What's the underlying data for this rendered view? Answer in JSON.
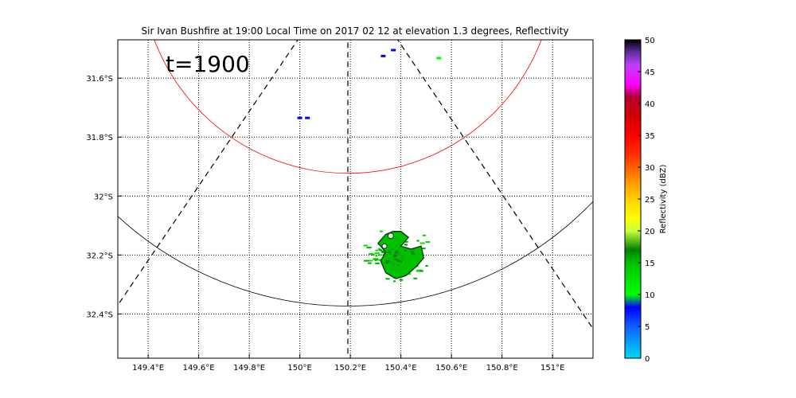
{
  "chart_data": {
    "type": "heatmap",
    "title": "Sir Ivan Bushfire at 19:00 Local Time on 2017 02 12 at elevation 1.3 degrees, Reflectivity",
    "annotation": "t=1900",
    "xlim": [
      149.28,
      151.16
    ],
    "ylim": [
      -32.55,
      -31.47
    ],
    "x_ticks": [
      149.4,
      149.6,
      149.8,
      150.0,
      150.2,
      150.4,
      150.6,
      150.8,
      151.0
    ],
    "x_tick_labels": [
      "149.4°E",
      "149.6°E",
      "149.8°E",
      "150°E",
      "150.2°E",
      "150.4°E",
      "150.6°E",
      "150.8°E",
      "151°E"
    ],
    "y_ticks": [
      -31.6,
      -31.8,
      -32.0,
      -32.2,
      -32.4
    ],
    "y_tick_labels": [
      "31.6°S",
      "31.8°S",
      "32°S",
      "32.2°S",
      "32.4°S"
    ],
    "grid": true,
    "grid_style": "dotted",
    "radar_center": [
      150.19,
      -31.22
    ],
    "range_rings_km": [
      {
        "radius_km": 78,
        "color": "#ff0000"
      },
      {
        "radius_km": 128,
        "color": "#000000"
      }
    ],
    "dashed_radials": [
      {
        "from": [
          150.19,
          -31.22
        ],
        "to": [
          149.28,
          -32.37
        ]
      },
      {
        "from": [
          150.19,
          -31.22
        ],
        "to": [
          150.19,
          -32.55
        ]
      },
      {
        "from": [
          150.19,
          -31.22
        ],
        "to": [
          151.16,
          -32.45
        ]
      }
    ],
    "echoes": [
      {
        "lon": 150.0,
        "lat": -31.735,
        "dbz": 8
      },
      {
        "lon": 150.03,
        "lat": -31.735,
        "dbz": 8
      },
      {
        "lon": 150.33,
        "lat": -31.525,
        "dbz": 9
      },
      {
        "lon": 150.37,
        "lat": -31.505,
        "dbz": 8
      },
      {
        "lon": 150.55,
        "lat": -31.532,
        "dbz": 10
      }
    ],
    "plume": {
      "center": [
        150.39,
        -32.195
      ],
      "dbz": 15,
      "outline": [
        [
          150.34,
          -32.13
        ],
        [
          150.37,
          -32.12
        ],
        [
          150.4,
          -32.12
        ],
        [
          150.43,
          -32.14
        ],
        [
          150.4,
          -32.17
        ],
        [
          150.44,
          -32.18
        ],
        [
          150.48,
          -32.17
        ],
        [
          150.49,
          -32.21
        ],
        [
          150.46,
          -32.24
        ],
        [
          150.42,
          -32.27
        ],
        [
          150.38,
          -32.28
        ],
        [
          150.34,
          -32.26
        ],
        [
          150.32,
          -32.22
        ],
        [
          150.34,
          -32.19
        ],
        [
          150.31,
          -32.16
        ]
      ]
    },
    "colorbar": {
      "label": "Reflectivity (dBZ)",
      "min": 0,
      "max": 50,
      "ticks": [
        0,
        5,
        10,
        15,
        20,
        25,
        30,
        35,
        40,
        45,
        50
      ],
      "stops": [
        {
          "value": 0,
          "color": "#00d8f0"
        },
        {
          "value": 5,
          "color": "#1060ff"
        },
        {
          "value": 8,
          "color": "#0000ff"
        },
        {
          "value": 10,
          "color": "#00ff00"
        },
        {
          "value": 15,
          "color": "#00c000"
        },
        {
          "value": 17,
          "color": "#008000"
        },
        {
          "value": 20,
          "color": "#c8ff40"
        },
        {
          "value": 22,
          "color": "#ffff00"
        },
        {
          "value": 25,
          "color": "#ffd000"
        },
        {
          "value": 28,
          "color": "#ff9000"
        },
        {
          "value": 32,
          "color": "#ff3000"
        },
        {
          "value": 35,
          "color": "#ff0000"
        },
        {
          "value": 38,
          "color": "#d00000"
        },
        {
          "value": 41,
          "color": "#b00030"
        },
        {
          "value": 43,
          "color": "#ff00ff"
        },
        {
          "value": 46,
          "color": "#c040ff"
        },
        {
          "value": 48,
          "color": "#6030a0"
        },
        {
          "value": 50,
          "color": "#000000"
        }
      ]
    }
  }
}
